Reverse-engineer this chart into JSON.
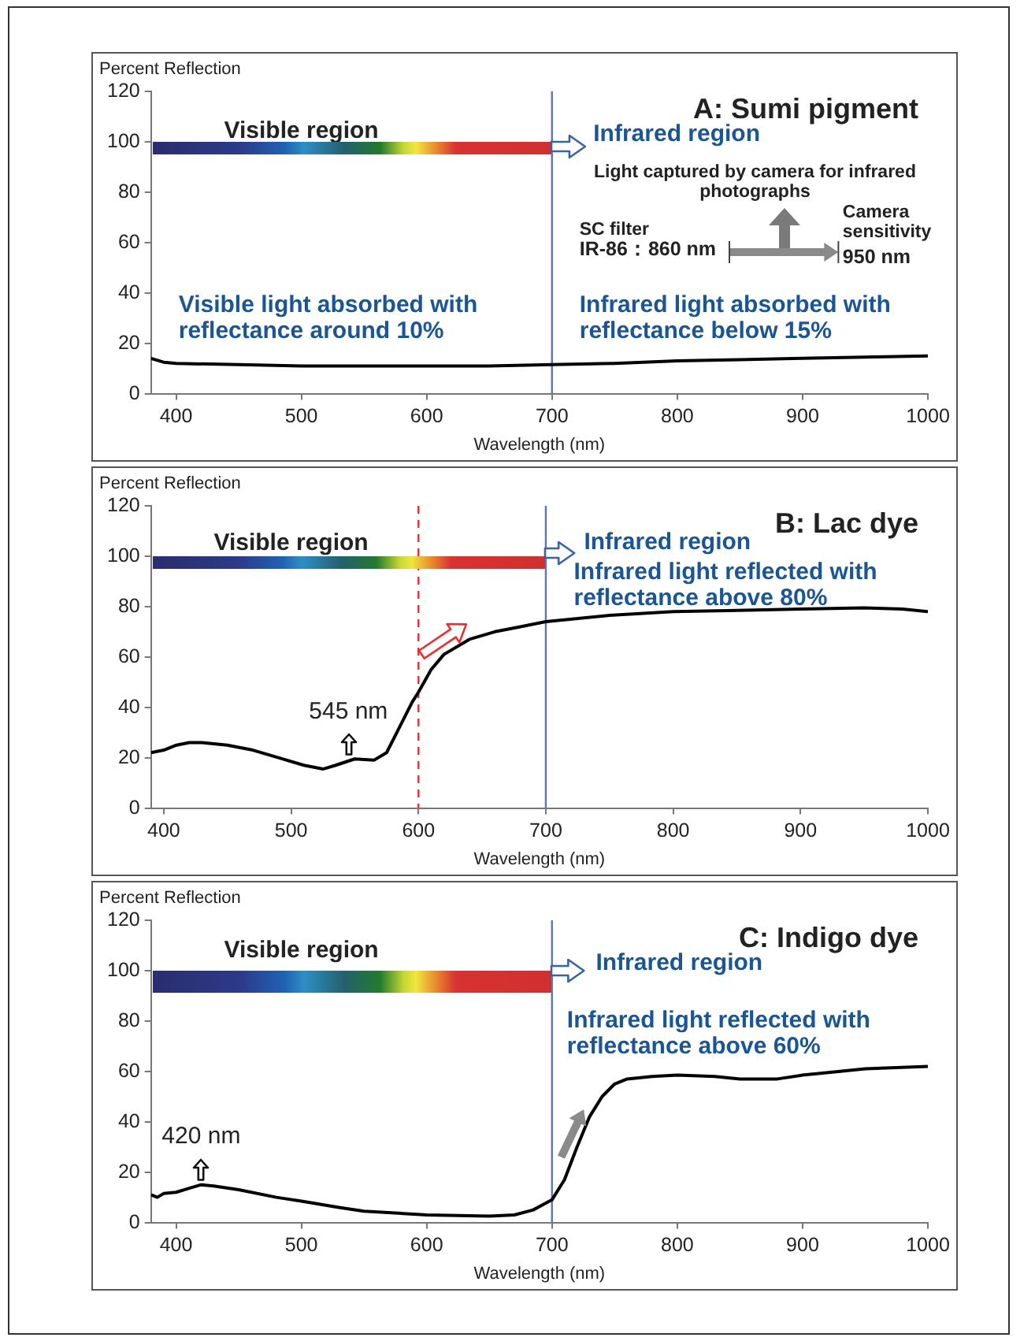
{
  "chart_data": [
    {
      "type": "line",
      "title": "A: Sumi pigment",
      "ylabel": "Percent Reflection",
      "xlabel": "Wavelength (nm)",
      "xlim": [
        380,
        1000
      ],
      "xticks": [
        400,
        500,
        600,
        700,
        800,
        900,
        1000
      ],
      "ylim": [
        0,
        120
      ],
      "yticks": [
        0,
        20,
        40,
        60,
        80,
        100,
        120
      ],
      "x": [
        380,
        390,
        400,
        450,
        500,
        550,
        600,
        650,
        700,
        750,
        800,
        850,
        900,
        950,
        1000
      ],
      "series": [
        {
          "color": "#000000",
          "values": [
            14,
            12.5,
            12,
            11.5,
            11,
            11,
            11,
            11,
            11.5,
            12,
            13,
            13.5,
            14,
            14.5,
            15
          ]
        }
      ],
      "ref_lines": [
        {
          "axis": "x",
          "value": 700,
          "color": "#5a78b8"
        }
      ],
      "annotations": [
        "Visible region",
        "Infrared region",
        "Light captured by camera for infrared photographs",
        "SC filter",
        "IR-86：860 nm",
        "Camera sensitivity",
        "950 nm",
        "Visible light absorbed with reflectance around 10%",
        "Infrared light absorbed with reflectance below 15%"
      ]
    },
    {
      "type": "line",
      "title": "B: Lac dye",
      "ylabel": "Percent Reflection",
      "xlabel": "Wavelength (nm)",
      "xlim": [
        390,
        1000
      ],
      "xticks": [
        400,
        500,
        600,
        700,
        800,
        900,
        1000
      ],
      "ylim": [
        0,
        120
      ],
      "yticks": [
        0,
        20,
        40,
        60,
        80,
        100,
        120
      ],
      "x": [
        390,
        400,
        410,
        420,
        430,
        450,
        470,
        490,
        510,
        525,
        535,
        550,
        565,
        575,
        585,
        595,
        600,
        610,
        620,
        640,
        660,
        680,
        700,
        750,
        800,
        850,
        900,
        950,
        980,
        1000
      ],
      "series": [
        {
          "color": "#000000",
          "values": [
            22,
            23,
            25,
            26,
            26,
            25,
            23,
            20,
            17,
            15.5,
            17,
            19.5,
            19,
            22,
            32,
            42,
            46,
            55,
            61,
            67,
            70,
            72,
            74,
            76.5,
            78,
            78.5,
            79,
            79.5,
            79,
            78
          ]
        }
      ],
      "ref_lines": [
        {
          "axis": "x",
          "value": 700,
          "color": "#5a78b8"
        },
        {
          "axis": "x",
          "value": 600,
          "color": "#e83030",
          "line_style": "dashed"
        }
      ],
      "annotations": [
        "Visible region",
        "Infrared region",
        "Infrared light reflected with reflectance above 80%",
        {
          "text": "545 nm",
          "x": 545,
          "y": 19
        }
      ]
    },
    {
      "type": "line",
      "title": "C: Indigo dye",
      "ylabel": "Percent Reflection",
      "xlabel": "Wavelength (nm)",
      "xlim": [
        380,
        1000
      ],
      "xticks": [
        400,
        500,
        600,
        700,
        800,
        900,
        1000
      ],
      "ylim": [
        0,
        120
      ],
      "yticks": [
        0,
        20,
        40,
        60,
        80,
        100,
        120
      ],
      "x": [
        380,
        385,
        390,
        400,
        410,
        420,
        430,
        450,
        480,
        500,
        530,
        550,
        600,
        650,
        670,
        685,
        700,
        710,
        720,
        730,
        740,
        750,
        760,
        780,
        800,
        830,
        850,
        880,
        900,
        930,
        950,
        1000
      ],
      "series": [
        {
          "color": "#000000",
          "values": [
            11,
            10,
            11.5,
            12,
            13.5,
            15,
            14.5,
            13,
            10,
            8.5,
            6,
            4.5,
            3,
            2.5,
            3,
            5,
            9,
            17,
            30,
            42,
            50,
            55,
            57,
            58,
            58.5,
            58,
            57,
            57,
            58.5,
            60,
            61,
            62
          ]
        }
      ],
      "ref_lines": [
        {
          "axis": "x",
          "value": 700,
          "color": "#5a78b8"
        }
      ],
      "annotations": [
        "Visible region",
        "Infrared region",
        "Infrared light reflected with reflectance above 60%",
        {
          "text": "420 nm",
          "x": 420,
          "y": 15
        }
      ]
    }
  ]
}
